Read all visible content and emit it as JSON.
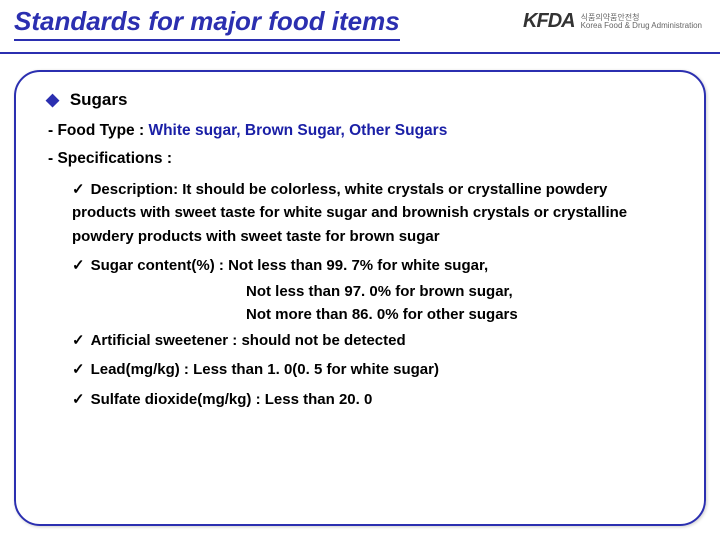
{
  "title": "Standards for major food items",
  "logo": {
    "mark": "KFDA",
    "line1": "식품의약품안전청",
    "line2": "Korea Food & Drug Administration"
  },
  "section": "Sugars",
  "foodType": {
    "label": "- Food Type : ",
    "value": "White sugar, Brown Sugar, Other Sugars"
  },
  "specLabel": "- Specifications :",
  "items": {
    "desc": "Description: It should be colorless, white crystals or crystalline powdery products with sweet taste for white sugar and brownish crystals or crystalline powdery products with sweet taste for brown sugar",
    "sugarContent": "Sugar content(%) : Not less than 99. 7% for white sugar,",
    "sugarContent2": "Not less than 97. 0% for brown sugar,",
    "sugarContent3": "Not more than 86. 0% for other sugars",
    "sweetener": "Artificial sweetener : should not be detected",
    "lead": "Lead(mg/kg) : Less than 1. 0(0. 5 for white sugar)",
    "sulfate": "Sulfate dioxide(mg/kg) : Less than 20. 0"
  },
  "colors": {
    "accent": "#2b2fb0",
    "foodTypeValue": "#1a1fa6"
  },
  "glyphs": {
    "bullet": "◆",
    "tick": "✓"
  }
}
